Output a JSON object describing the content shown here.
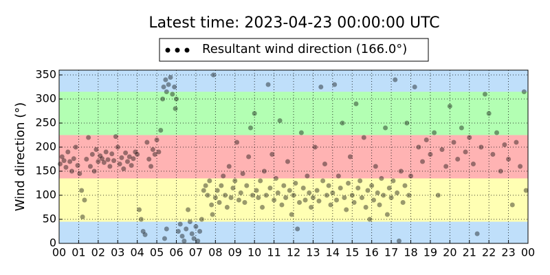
{
  "chart_data": {
    "type": "scatter",
    "title": "Latest time: 2023-04-23 00:00:00 UTC",
    "y_label": "Wind direction (°)",
    "xlim": [
      0,
      24
    ],
    "ylim": [
      0,
      360
    ],
    "xticks": [
      {
        "value": 0,
        "label": "00"
      },
      {
        "value": 1,
        "label": "01"
      },
      {
        "value": 2,
        "label": "02"
      },
      {
        "value": 3,
        "label": "03"
      },
      {
        "value": 4,
        "label": "04"
      },
      {
        "value": 5,
        "label": "05"
      },
      {
        "value": 6,
        "label": "06"
      },
      {
        "value": 7,
        "label": "07"
      },
      {
        "value": 8,
        "label": "08"
      },
      {
        "value": 9,
        "label": "09"
      },
      {
        "value": 10,
        "label": "10"
      },
      {
        "value": 11,
        "label": "11"
      },
      {
        "value": 12,
        "label": "12"
      },
      {
        "value": 13,
        "label": "13"
      },
      {
        "value": 14,
        "label": "14"
      },
      {
        "value": 15,
        "label": "15"
      },
      {
        "value": 16,
        "label": "16"
      },
      {
        "value": 17,
        "label": "17"
      },
      {
        "value": 18,
        "label": "18"
      },
      {
        "value": 19,
        "label": "19"
      },
      {
        "value": 20,
        "label": "20"
      },
      {
        "value": 21,
        "label": "21"
      },
      {
        "value": 22,
        "label": "22"
      },
      {
        "value": 23,
        "label": "23"
      },
      {
        "value": 24,
        "label": "00"
      }
    ],
    "yticks": [
      0,
      50,
      100,
      150,
      200,
      250,
      300,
      350
    ],
    "grid": true,
    "legend": "top",
    "bands": [
      {
        "from": 0,
        "to": 45,
        "color": "#bfdffa"
      },
      {
        "from": 45,
        "to": 135,
        "color": "#ffffb3"
      },
      {
        "from": 135,
        "to": 225,
        "color": "#ffb3b3"
      },
      {
        "from": 225,
        "to": 315,
        "color": "#b3ffb3"
      },
      {
        "from": 315,
        "to": 360,
        "color": "#bfdffa"
      }
    ],
    "x": [
      0.05,
      0.15,
      0.25,
      0.35,
      0.45,
      0.55,
      0.65,
      0.75,
      0.85,
      0.95,
      1.05,
      1.15,
      1.2,
      1.3,
      1.4,
      1.5,
      1.6,
      1.7,
      1.8,
      1.9,
      2,
      2.1,
      2.2,
      2.3,
      2.4,
      2.5,
      2.6,
      2.7,
      2.8,
      2.9,
      3,
      3.1,
      3.2,
      3.3,
      3.4,
      3.5,
      3.6,
      3.7,
      3.8,
      3.9,
      4,
      4.1,
      4.2,
      4.3,
      4.4,
      4.5,
      4.6,
      4.7,
      4.8,
      4.9,
      5,
      5.1,
      5.2,
      5.3,
      5.35,
      5.45,
      5.5,
      5.6,
      5.7,
      5.8,
      5.9,
      5.95,
      6,
      5.4,
      5.5,
      6.1,
      6.2,
      6.3,
      6.4,
      6.5,
      6.6,
      6.7,
      6.8,
      6.9,
      7,
      7.1,
      7.2,
      7.3,
      7.4,
      7.5,
      7.6,
      7.7,
      7.8,
      7.9,
      7.85,
      8,
      8.1,
      8.2,
      8.3,
      8.4,
      8.5,
      8.6,
      8.7,
      8.8,
      8.9,
      9,
      9.1,
      9.2,
      9.3,
      9.4,
      9.5,
      9.6,
      9.7,
      9.8,
      9.9,
      10,
      10.1,
      10.2,
      10.3,
      10.4,
      10.5,
      10.6,
      10.7,
      10.8,
      10.9,
      11,
      11.1,
      11.2,
      11.3,
      11.4,
      11.5,
      11.6,
      11.7,
      11.8,
      11.9,
      12,
      12.1,
      12.2,
      12.3,
      12.4,
      12.5,
      12.6,
      12.7,
      12.8,
      12.9,
      13,
      13.1,
      13.2,
      13.3,
      13.4,
      13.5,
      13.6,
      13.7,
      13.8,
      13.9,
      14,
      14.1,
      14.2,
      14.3,
      14.4,
      14.5,
      14.6,
      14.7,
      14.8,
      14.9,
      15,
      15.1,
      15.2,
      15.3,
      15.4,
      15.5,
      15.6,
      15.7,
      15.8,
      15.9,
      16,
      16.1,
      16.2,
      16.3,
      16.4,
      16.5,
      16.6,
      16.7,
      16.8,
      16.9,
      17,
      17.1,
      17.2,
      17.3,
      17.4,
      17.5,
      17.6,
      17.7,
      17.8,
      17.9,
      18,
      18.2,
      18.4,
      18.6,
      18.8,
      19,
      19.2,
      19.4,
      19.6,
      19.8,
      20,
      20.2,
      20.4,
      20.6,
      20.8,
      21,
      21.2,
      21.4,
      21.6,
      21.8,
      22,
      22.2,
      22.4,
      22.6,
      22.8,
      23,
      23.2,
      23.4,
      23.6,
      23.8,
      23.9
    ],
    "series": [
      {
        "name": "Resultant wind direction (166.0°)",
        "color": "#000000",
        "opacity": 0.4,
        "values": [
          165,
          180,
          172,
          158,
          190,
          170,
          150,
          176,
          200,
          162,
          145,
          110,
          55,
          90,
          175,
          220,
          160,
          185,
          150,
          195,
          170,
          182,
          176,
          168,
          190,
          174,
          160,
          186,
          172,
          222,
          200,
          165,
          178,
          155,
          188,
          170,
          180,
          162,
          176,
          190,
          185,
          70,
          50,
          25,
          18,
          210,
          175,
          160,
          195,
          185,
          215,
          190,
          235,
          300,
          325,
          340,
          315,
          330,
          345,
          310,
          325,
          280,
          300,
          10,
          30,
          25,
          40,
          15,
          5,
          30,
          70,
          45,
          20,
          10,
          35,
          5,
          25,
          50,
          110,
          120,
          100,
          130,
          80,
          350,
          60,
          95,
          110,
          85,
          120,
          140,
          100,
          75,
          160,
          95,
          115,
          130,
          210,
          90,
          105,
          145,
          85,
          120,
          180,
          240,
          100,
          270,
          110,
          95,
          130,
          75,
          150,
          100,
          330,
          115,
          185,
          90,
          135,
          105,
          255,
          80,
          120,
          95,
          170,
          110,
          60,
          100,
          125,
          30,
          85,
          230,
          115,
          90,
          140,
          105,
          75,
          95,
          200,
          110,
          88,
          325,
          130,
          165,
          100,
          120,
          80,
          105,
          330,
          90,
          140,
          115,
          250,
          95,
          70,
          125,
          180,
          100,
          85,
          290,
          115,
          130,
          95,
          220,
          75,
          110,
          50,
          120,
          90,
          160,
          105,
          80,
          135,
          100,
          240,
          60,
          115,
          95,
          130,
          340,
          105,
          5,
          150,
          85,
          120,
          250,
          100,
          140,
          325,
          200,
          170,
          215,
          185,
          230,
          100,
          195,
          160,
          285,
          210,
          175,
          240,
          190,
          220,
          165,
          20,
          200,
          310,
          270,
          185,
          230,
          150,
          205,
          175,
          80,
          210,
          160,
          315,
          110
        ]
      }
    ]
  }
}
